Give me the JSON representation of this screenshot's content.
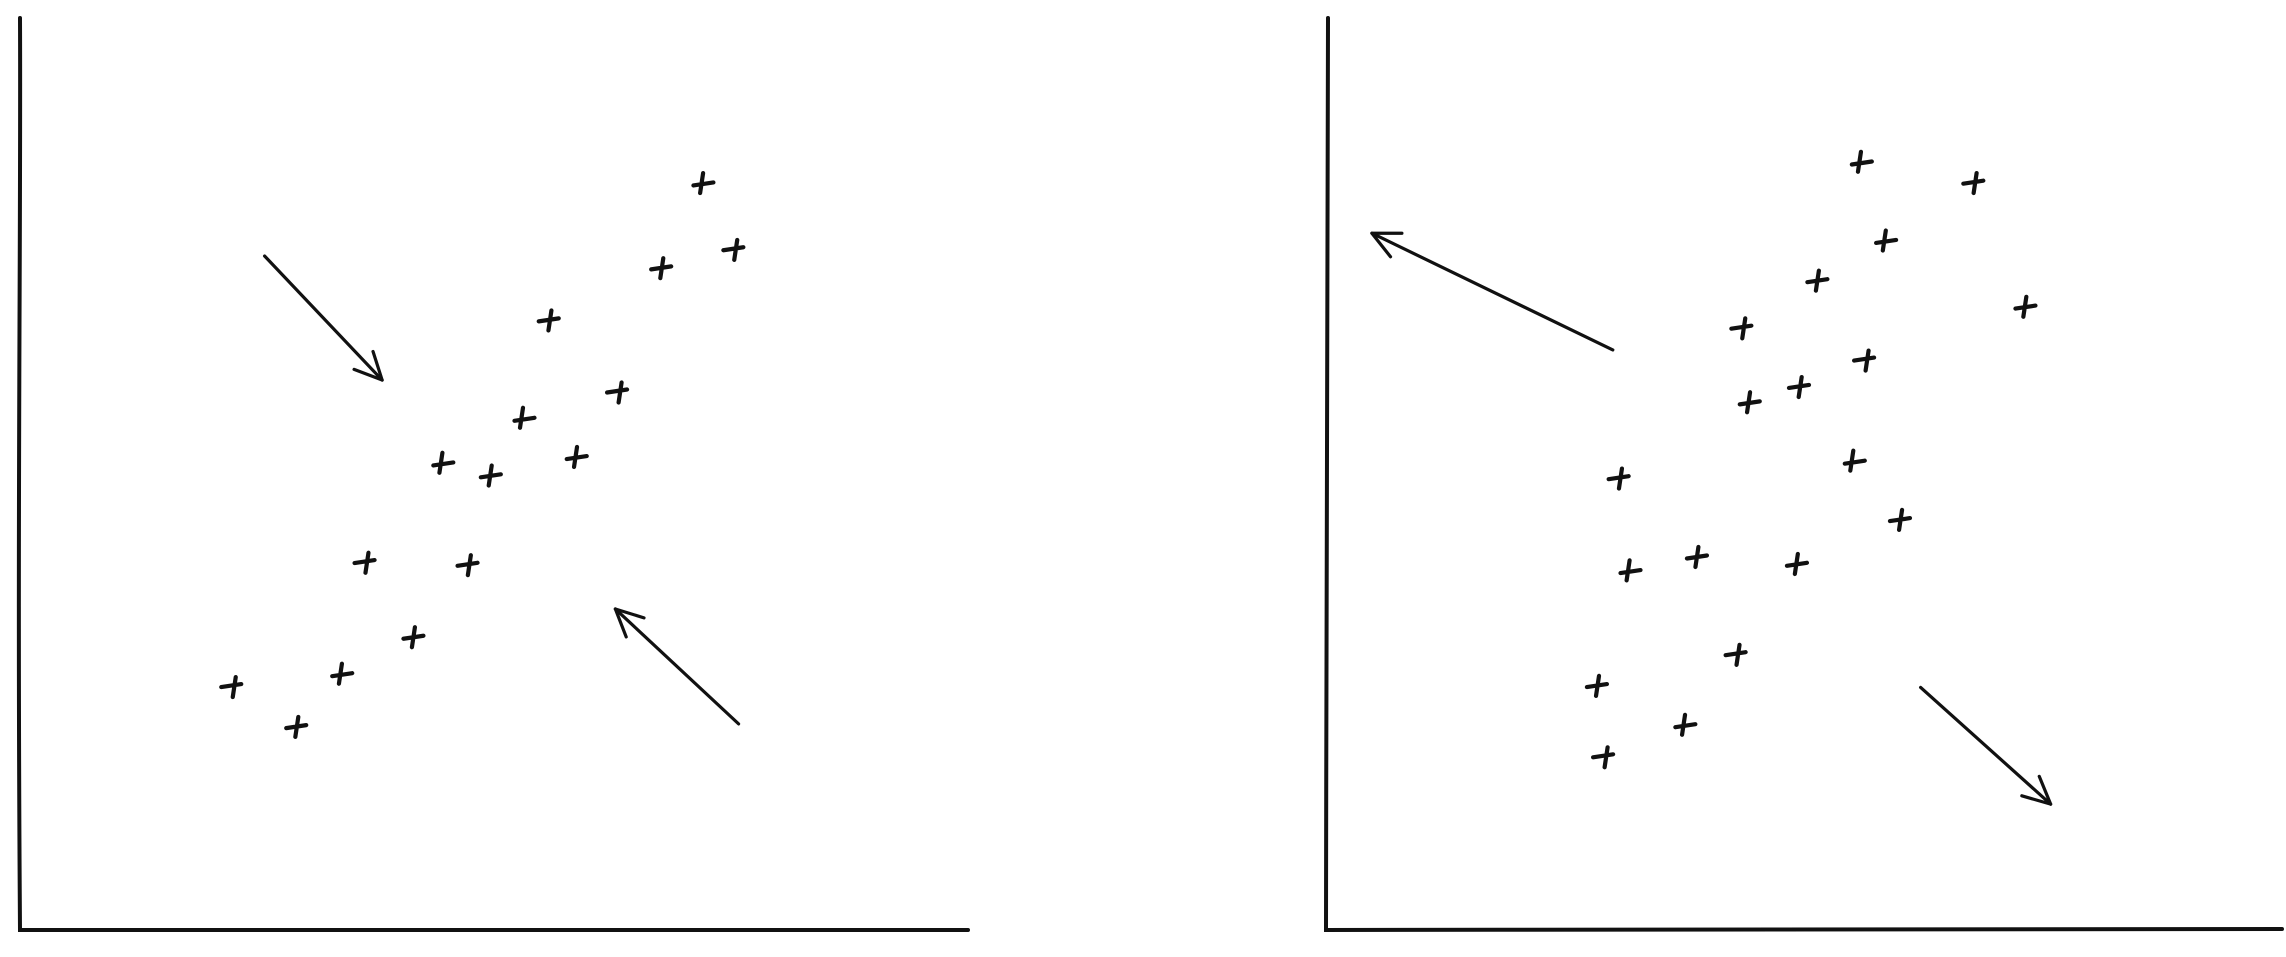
{
  "chart_data": [
    {
      "type": "scatter",
      "xlim": [
        0,
        100
      ],
      "ylim": [
        0,
        100
      ],
      "grid": false,
      "ticks": false,
      "marker_style": "hand-drawn cross",
      "points": [
        {
          "x": 22.6,
          "y": 26.8
        },
        {
          "x": 29.2,
          "y": 22.3
        },
        {
          "x": 33.8,
          "y": 28.0
        },
        {
          "x": 36.6,
          "y": 40.4
        },
        {
          "x": 41.5,
          "y": 32.1
        },
        {
          "x": 44.4,
          "y": 51.1
        },
        {
          "x": 47.4,
          "y": 40.1
        },
        {
          "x": 49.6,
          "y": 49.8
        },
        {
          "x": 52.9,
          "y": 56.0
        },
        {
          "x": 55.9,
          "y": 66.9
        },
        {
          "x": 58.6,
          "y": 51.8
        },
        {
          "x": 63.3,
          "y": 59.1
        },
        {
          "x": 67.7,
          "y": 72.6
        },
        {
          "x": 71.9,
          "y": 81.8
        },
        {
          "x": 75.5,
          "y": 74.7
        }
      ],
      "arrows": [
        {
          "from": [
            25.8,
            73.9
          ],
          "to": [
            38.2,
            60.3
          ],
          "label": ""
        },
        {
          "from": [
            75.8,
            22.6
          ],
          "to": [
            62.8,
            35.2
          ],
          "label": ""
        }
      ]
    },
    {
      "type": "scatter",
      "xlim": [
        0,
        100
      ],
      "ylim": [
        0,
        100
      ],
      "grid": false,
      "ticks": false,
      "marker_style": "hand-drawn cross",
      "points": [
        {
          "x": 29.3,
          "y": 19.1
        },
        {
          "x": 28.4,
          "y": 26.8
        },
        {
          "x": 37.4,
          "y": 22.4
        },
        {
          "x": 43.1,
          "y": 30.3
        },
        {
          "x": 38.8,
          "y": 40.9
        },
        {
          "x": 31.6,
          "y": 39.3
        },
        {
          "x": 30.8,
          "y": 49.6
        },
        {
          "x": 49.2,
          "y": 40.1
        },
        {
          "x": 55.0,
          "y": 51.3
        },
        {
          "x": 49.6,
          "y": 59.6
        },
        {
          "x": 44.2,
          "y": 57.8
        },
        {
          "x": 56.6,
          "y": 62.6
        },
        {
          "x": 60.1,
          "y": 45.0
        },
        {
          "x": 58.4,
          "y": 75.5
        },
        {
          "x": 43.7,
          "y": 66.1
        },
        {
          "x": 51.4,
          "y": 71.2
        },
        {
          "x": 55.8,
          "y": 84.1
        },
        {
          "x": 67.9,
          "y": 82.0
        },
        {
          "x": 73.1,
          "y": 68.3
        }
      ],
      "arrows": [
        {
          "from": [
            30.0,
            63.6
          ],
          "to": [
            4.8,
            76.4
          ],
          "label": ""
        },
        {
          "from": [
            62.2,
            26.6
          ],
          "to": [
            75.8,
            13.8
          ],
          "label": ""
        }
      ]
    }
  ]
}
